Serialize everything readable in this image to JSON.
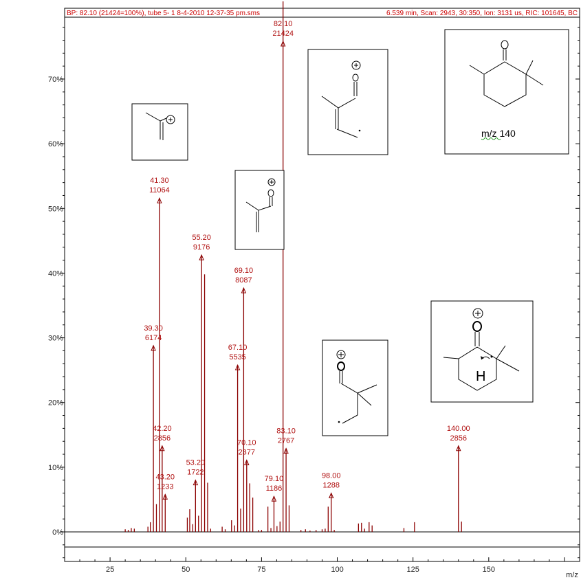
{
  "header": {
    "left": "BP: 82.10 (21424=100%), tube 5- 1 8-4-2010 12-37-35 pm.sms",
    "right": "6.539 min, Scan: 2943, 30:350, Ion: 3131 us, RIC: 101645, BC"
  },
  "chart_data": {
    "type": "bar",
    "title": "",
    "xlabel": "m/z",
    "ylabel": "",
    "xlim": [
      10,
      180
    ],
    "ylim": [
      -5,
      80
    ],
    "x_ticks": [
      25,
      50,
      75,
      100,
      125,
      150
    ],
    "y_ticks": [
      0,
      10,
      20,
      30,
      40,
      50,
      60,
      70
    ],
    "y_tick_labels": [
      "0%",
      "10%",
      "20%",
      "30%",
      "40%",
      "50%",
      "60%",
      "70%"
    ],
    "peaks": [
      {
        "mz": 30,
        "pct": 0.4
      },
      {
        "mz": 31,
        "pct": 0.3
      },
      {
        "mz": 32,
        "pct": 0.6
      },
      {
        "mz": 33,
        "pct": 0.5
      },
      {
        "mz": 37.5,
        "pct": 0.8
      },
      {
        "mz": 38.3,
        "pct": 1.5
      },
      {
        "mz": 39.3,
        "pct": 28.8
      },
      {
        "mz": 40.3,
        "pct": 4.3
      },
      {
        "mz": 41.3,
        "pct": 51.6
      },
      {
        "mz": 42.2,
        "pct": 13.3
      },
      {
        "mz": 43.2,
        "pct": 5.8
      },
      {
        "mz": 50.5,
        "pct": 2.2
      },
      {
        "mz": 51.3,
        "pct": 3.5
      },
      {
        "mz": 52.3,
        "pct": 1.2
      },
      {
        "mz": 53.2,
        "pct": 8.0
      },
      {
        "mz": 54.2,
        "pct": 2.5
      },
      {
        "mz": 55.2,
        "pct": 42.8
      },
      {
        "mz": 56.2,
        "pct": 39.8
      },
      {
        "mz": 57.2,
        "pct": 7.6
      },
      {
        "mz": 58.2,
        "pct": 0.5
      },
      {
        "mz": 62,
        "pct": 0.8
      },
      {
        "mz": 63,
        "pct": 0.4
      },
      {
        "mz": 65.1,
        "pct": 1.8
      },
      {
        "mz": 66.1,
        "pct": 1.0
      },
      {
        "mz": 67.1,
        "pct": 25.8
      },
      {
        "mz": 68.1,
        "pct": 3.6
      },
      {
        "mz": 69.1,
        "pct": 37.7
      },
      {
        "mz": 70.1,
        "pct": 11.1
      },
      {
        "mz": 71.1,
        "pct": 7.5
      },
      {
        "mz": 72.1,
        "pct": 5.3
      },
      {
        "mz": 74,
        "pct": 0.3
      },
      {
        "mz": 75,
        "pct": 0.3
      },
      {
        "mz": 77.1,
        "pct": 3.9
      },
      {
        "mz": 78.1,
        "pct": 0.6
      },
      {
        "mz": 79.1,
        "pct": 5.5
      },
      {
        "mz": 80.1,
        "pct": 0.9
      },
      {
        "mz": 81.1,
        "pct": 1.6
      },
      {
        "mz": 82.1,
        "pct": 100
      },
      {
        "mz": 83.1,
        "pct": 12.9
      },
      {
        "mz": 84.1,
        "pct": 4.1
      },
      {
        "mz": 88,
        "pct": 0.3
      },
      {
        "mz": 89.5,
        "pct": 0.4
      },
      {
        "mz": 91,
        "pct": 0.2
      },
      {
        "mz": 93,
        "pct": 0.3
      },
      {
        "mz": 95,
        "pct": 0.4
      },
      {
        "mz": 96,
        "pct": 0.5
      },
      {
        "mz": 97,
        "pct": 3.9
      },
      {
        "mz": 98,
        "pct": 6.0
      },
      {
        "mz": 99,
        "pct": 0.3
      },
      {
        "mz": 107,
        "pct": 1.3
      },
      {
        "mz": 108,
        "pct": 1.4
      },
      {
        "mz": 109,
        "pct": 0.5
      },
      {
        "mz": 110.5,
        "pct": 1.5
      },
      {
        "mz": 111.5,
        "pct": 1.0
      },
      {
        "mz": 122,
        "pct": 0.6
      },
      {
        "mz": 125.5,
        "pct": 1.5
      },
      {
        "mz": 140,
        "pct": 13.3
      },
      {
        "mz": 141,
        "pct": 1.6
      }
    ],
    "annotations": [
      {
        "mz": 39.3,
        "pct": 28.8,
        "mz_label": "39.30",
        "count": "6174"
      },
      {
        "mz": 41.3,
        "pct": 51.6,
        "mz_label": "41.30",
        "count": "11064"
      },
      {
        "mz": 42.2,
        "pct": 13.3,
        "mz_label": "42.20",
        "count": "2856"
      },
      {
        "mz": 43.2,
        "pct": 5.8,
        "mz_label": "43.20",
        "count": "1233"
      },
      {
        "mz": 53.2,
        "pct": 8.0,
        "mz_label": "53.20",
        "count": "1722"
      },
      {
        "mz": 55.2,
        "pct": 42.8,
        "mz_label": "55.20",
        "count": "9176"
      },
      {
        "mz": 67.1,
        "pct": 25.8,
        "mz_label": "67.10",
        "count": "5535"
      },
      {
        "mz": 69.1,
        "pct": 37.7,
        "mz_label": "69.10",
        "count": "8087"
      },
      {
        "mz": 70.1,
        "pct": 11.1,
        "mz_label": "70.10",
        "count": "2377"
      },
      {
        "mz": 79.1,
        "pct": 5.5,
        "mz_label": "79.10",
        "count": "1186"
      },
      {
        "mz": 82.1,
        "pct": 100,
        "mz_label": "82.10",
        "count": "21424"
      },
      {
        "mz": 83.1,
        "pct": 12.9,
        "mz_label": "83.10",
        "count": "2767"
      },
      {
        "mz": 98.0,
        "pct": 6.0,
        "mz_label": "98.00",
        "count": "1288"
      },
      {
        "mz": 140.0,
        "pct": 13.3,
        "mz_label": "140.00",
        "count": "2856"
      }
    ],
    "colors": {
      "peaks": "#8b0000",
      "axes": "#000000",
      "box": "#000000"
    }
  },
  "structures": {
    "parent_label": "m/z 140",
    "charge_symbol": "⊕",
    "hydrogen_label": "H"
  }
}
